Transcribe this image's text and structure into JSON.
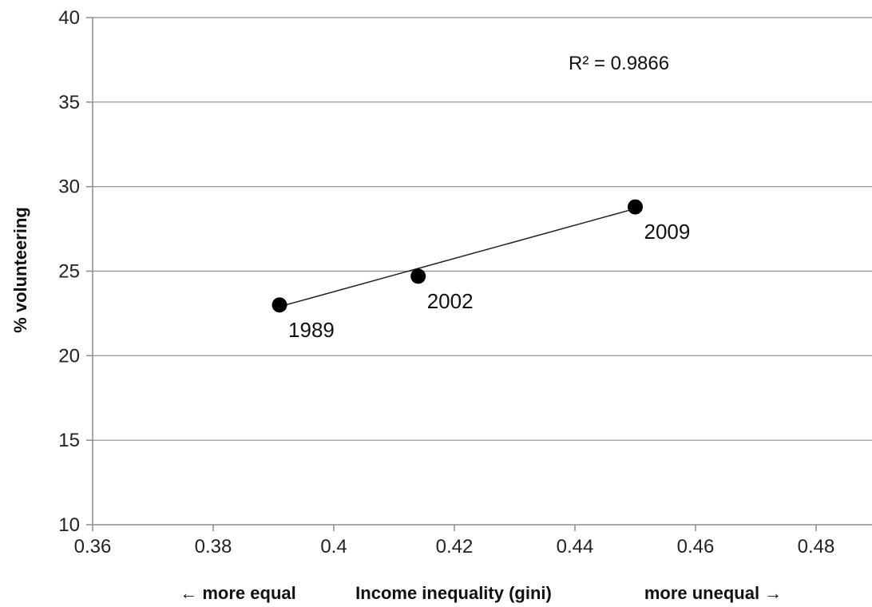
{
  "chart_data": {
    "type": "scatter",
    "title": "",
    "xlabel": "Income inequality (gini)",
    "xlabel_left": "← more equal",
    "xlabel_right": "more unequal →",
    "ylabel": "% volunteering",
    "xlim": [
      0.36,
      0.49
    ],
    "ylim": [
      10,
      40
    ],
    "xticks": [
      0.36,
      0.38,
      0.4,
      0.42,
      0.44,
      0.46,
      0.48
    ],
    "xtick_labels": [
      "0.36",
      "0.38",
      "0.4",
      "0.42",
      "0.44",
      "0.46",
      "0.48"
    ],
    "yticks": [
      10,
      15,
      20,
      25,
      30,
      35,
      40
    ],
    "ytick_labels": [
      "10",
      "15",
      "20",
      "25",
      "30",
      "35",
      "40"
    ],
    "grid": "horizontal",
    "points": [
      {
        "x": 0.391,
        "y": 23.0,
        "label": "1989"
      },
      {
        "x": 0.414,
        "y": 24.7,
        "label": "2002"
      },
      {
        "x": 0.45,
        "y": 28.8,
        "label": "2009"
      }
    ],
    "trendline": {
      "type": "linear",
      "x": [
        0.391,
        0.45
      ],
      "y": [
        22.9,
        28.7
      ]
    },
    "annotation": "R² = 0.9866",
    "colors": {
      "marker": "#000000",
      "line": "#222222",
      "grid": "#8c8c8c",
      "axis": "#8c8c8c"
    }
  }
}
